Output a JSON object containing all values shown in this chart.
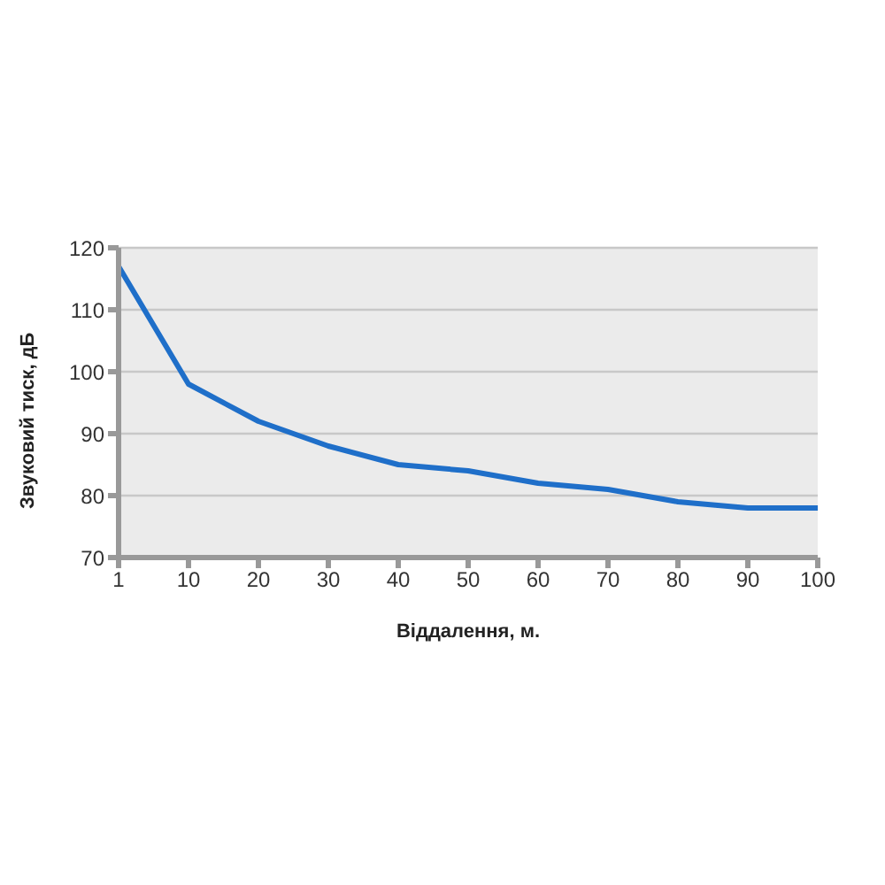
{
  "chart_data": {
    "type": "line",
    "xlabel": "Віддалення, м.",
    "ylabel": "Звуковий тиск, дБ",
    "categories": [
      "1",
      "10",
      "20",
      "30",
      "40",
      "50",
      "60",
      "70",
      "80",
      "90",
      "100"
    ],
    "series": [
      {
        "color": "#1f6fc9",
        "values": [
          117,
          98,
          92,
          88,
          85,
          84,
          82,
          81,
          79,
          78,
          78
        ]
      }
    ],
    "ylim": [
      70,
      120
    ],
    "yticks": [
      70,
      80,
      90,
      100,
      110,
      120
    ],
    "grid": "y",
    "legend": false,
    "marker": "none",
    "line_style": "solid"
  }
}
